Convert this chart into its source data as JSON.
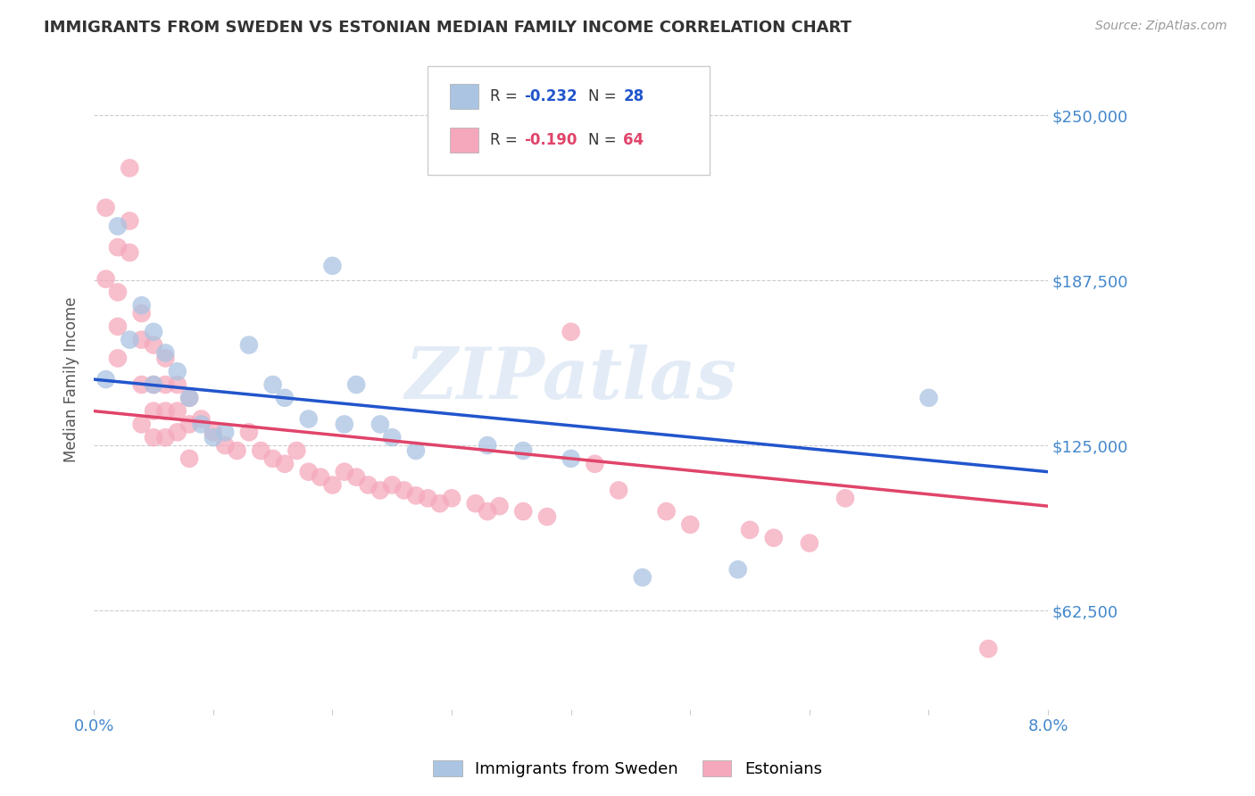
{
  "title": "IMMIGRANTS FROM SWEDEN VS ESTONIAN MEDIAN FAMILY INCOME CORRELATION CHART",
  "source": "Source: ZipAtlas.com",
  "ylabel": "Median Family Income",
  "watermark": "ZIPatlas",
  "xlim": [
    0.0,
    0.08
  ],
  "ylim": [
    25000,
    275000
  ],
  "yticks": [
    62500,
    125000,
    187500,
    250000
  ],
  "ytick_labels": [
    "$62,500",
    "$125,000",
    "$187,500",
    "$250,000"
  ],
  "xticks": [
    0.0,
    0.01,
    0.02,
    0.03,
    0.04,
    0.05,
    0.06,
    0.07,
    0.08
  ],
  "xtick_labels": [
    "0.0%",
    "",
    "",
    "",
    "",
    "",
    "",
    "",
    "8.0%"
  ],
  "sweden_color": "#aac4e2",
  "estonian_color": "#f5a8bc",
  "sweden_line_color": "#2255cc",
  "estonian_line_color": "#e0446a",
  "sweden_R": -0.232,
  "sweden_N": 28,
  "estonian_R": -0.19,
  "estonian_N": 64,
  "sweden_line": [
    [
      0.0,
      150000
    ],
    [
      0.08,
      115000
    ]
  ],
  "estonian_line": [
    [
      0.0,
      138000
    ],
    [
      0.08,
      102000
    ]
  ],
  "sweden_points": [
    [
      0.001,
      150000
    ],
    [
      0.002,
      208000
    ],
    [
      0.003,
      165000
    ],
    [
      0.004,
      178000
    ],
    [
      0.005,
      168000
    ],
    [
      0.005,
      148000
    ],
    [
      0.006,
      160000
    ],
    [
      0.007,
      153000
    ],
    [
      0.008,
      143000
    ],
    [
      0.009,
      133000
    ],
    [
      0.01,
      128000
    ],
    [
      0.011,
      130000
    ],
    [
      0.013,
      163000
    ],
    [
      0.015,
      148000
    ],
    [
      0.016,
      143000
    ],
    [
      0.018,
      135000
    ],
    [
      0.02,
      193000
    ],
    [
      0.021,
      133000
    ],
    [
      0.022,
      148000
    ],
    [
      0.024,
      133000
    ],
    [
      0.025,
      128000
    ],
    [
      0.027,
      123000
    ],
    [
      0.033,
      125000
    ],
    [
      0.036,
      123000
    ],
    [
      0.04,
      120000
    ],
    [
      0.046,
      75000
    ],
    [
      0.054,
      78000
    ],
    [
      0.07,
      143000
    ]
  ],
  "estonian_points": [
    [
      0.001,
      215000
    ],
    [
      0.001,
      188000
    ],
    [
      0.002,
      200000
    ],
    [
      0.002,
      183000
    ],
    [
      0.002,
      170000
    ],
    [
      0.002,
      158000
    ],
    [
      0.003,
      230000
    ],
    [
      0.003,
      210000
    ],
    [
      0.003,
      198000
    ],
    [
      0.004,
      175000
    ],
    [
      0.004,
      165000
    ],
    [
      0.004,
      148000
    ],
    [
      0.004,
      133000
    ],
    [
      0.005,
      163000
    ],
    [
      0.005,
      148000
    ],
    [
      0.005,
      138000
    ],
    [
      0.005,
      128000
    ],
    [
      0.006,
      158000
    ],
    [
      0.006,
      148000
    ],
    [
      0.006,
      138000
    ],
    [
      0.006,
      128000
    ],
    [
      0.007,
      148000
    ],
    [
      0.007,
      138000
    ],
    [
      0.007,
      130000
    ],
    [
      0.008,
      143000
    ],
    [
      0.008,
      133000
    ],
    [
      0.008,
      120000
    ],
    [
      0.009,
      135000
    ],
    [
      0.01,
      130000
    ],
    [
      0.011,
      125000
    ],
    [
      0.012,
      123000
    ],
    [
      0.013,
      130000
    ],
    [
      0.014,
      123000
    ],
    [
      0.015,
      120000
    ],
    [
      0.016,
      118000
    ],
    [
      0.017,
      123000
    ],
    [
      0.018,
      115000
    ],
    [
      0.019,
      113000
    ],
    [
      0.02,
      110000
    ],
    [
      0.021,
      115000
    ],
    [
      0.022,
      113000
    ],
    [
      0.023,
      110000
    ],
    [
      0.024,
      108000
    ],
    [
      0.025,
      110000
    ],
    [
      0.026,
      108000
    ],
    [
      0.027,
      106000
    ],
    [
      0.028,
      105000
    ],
    [
      0.029,
      103000
    ],
    [
      0.03,
      105000
    ],
    [
      0.032,
      103000
    ],
    [
      0.033,
      100000
    ],
    [
      0.034,
      102000
    ],
    [
      0.036,
      100000
    ],
    [
      0.038,
      98000
    ],
    [
      0.04,
      168000
    ],
    [
      0.042,
      118000
    ],
    [
      0.044,
      108000
    ],
    [
      0.048,
      100000
    ],
    [
      0.05,
      95000
    ],
    [
      0.055,
      93000
    ],
    [
      0.057,
      90000
    ],
    [
      0.06,
      88000
    ],
    [
      0.063,
      105000
    ],
    [
      0.075,
      48000
    ]
  ],
  "background_color": "#ffffff",
  "grid_color": "#cccccc",
  "title_color": "#333333",
  "axis_label_color": "#4488cc"
}
